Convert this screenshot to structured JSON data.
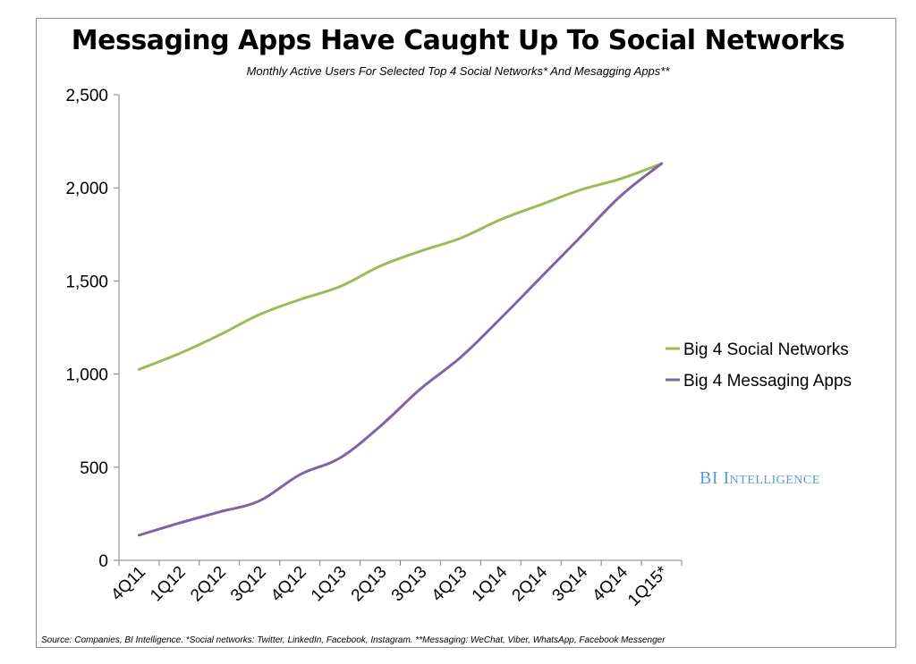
{
  "chart_data": {
    "type": "line",
    "title": "Messaging Apps Have Caught Up To Social Networks",
    "subtitle": "Monthly Active Users For Selected Top 4 Social Networks* And Mesagging Apps**",
    "xlabel": "",
    "ylabel": "",
    "categories": [
      "4Q11",
      "1Q12",
      "2Q12",
      "3Q12",
      "4Q12",
      "1Q13",
      "2Q13",
      "3Q13",
      "4Q13",
      "1Q14",
      "2Q14",
      "3Q14",
      "4Q14",
      "1Q15*"
    ],
    "ylim": [
      0,
      2500
    ],
    "yticks": [
      0,
      500,
      1000,
      1500,
      2000,
      2500
    ],
    "ytick_labels": [
      "0",
      "500",
      "1,000",
      "1,500",
      "2,000",
      "2,500"
    ],
    "grid": false,
    "legend_position": "right",
    "series": [
      {
        "name": "Big 4 Social Networks",
        "color": "#9bbb59",
        "values": [
          1025,
          1110,
          1210,
          1320,
          1400,
          1470,
          1580,
          1660,
          1730,
          1830,
          1910,
          1990,
          2050,
          2130
        ]
      },
      {
        "name": "Big 4 Messaging Apps",
        "color": "#8064a2",
        "values": [
          135,
          200,
          260,
          320,
          460,
          550,
          720,
          920,
          1090,
          1300,
          1520,
          1740,
          1960,
          2130
        ]
      }
    ]
  },
  "watermark": "BI Intelligence",
  "source": "Source: Companies, BI Intelligence. *Social networks: Twitter, LinkedIn, Facebook, Instagram. **Messaging: WeChat, Viber, WhatsApp, Facebook Messenger"
}
